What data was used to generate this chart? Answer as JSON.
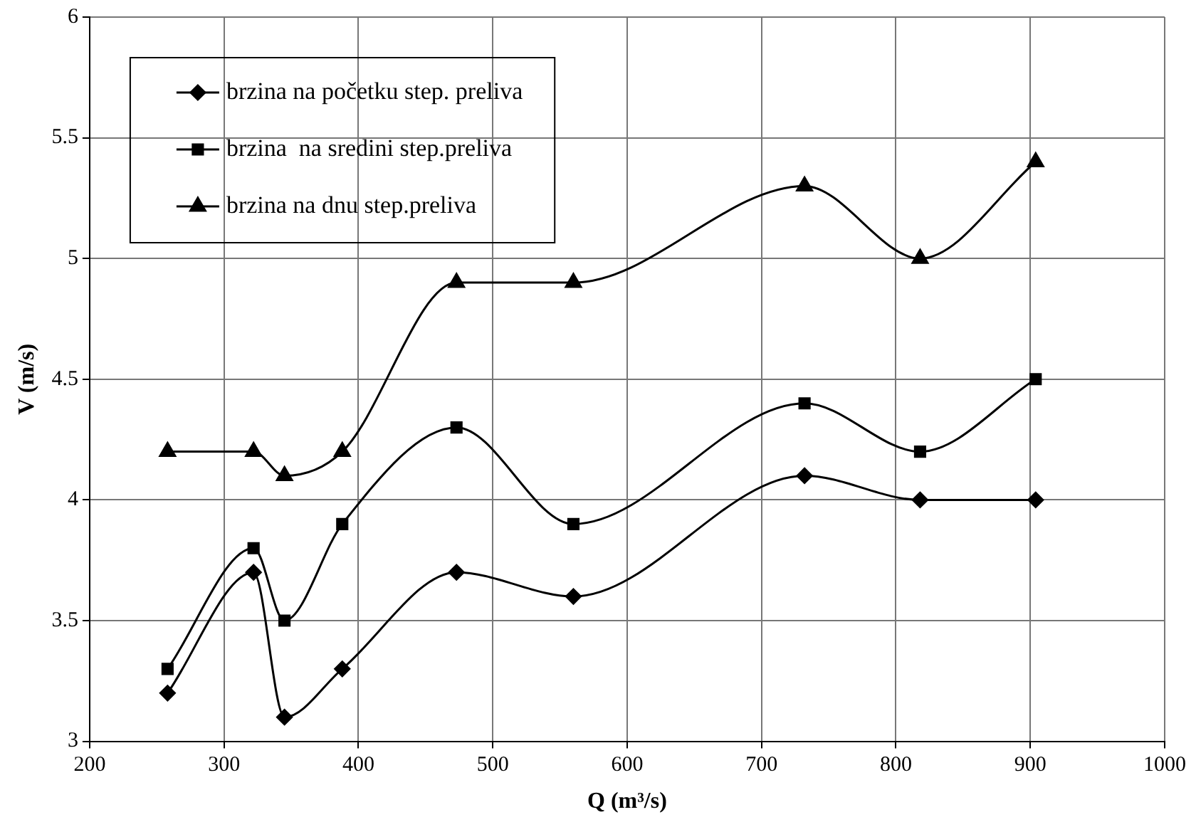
{
  "chart_data": {
    "type": "line",
    "xlabel": "Q (m³/s)",
    "ylabel": "V (m/s)",
    "x": [
      258,
      322,
      345,
      388,
      473,
      560,
      732,
      818,
      904
    ],
    "series": [
      {
        "name": "brzina na početku step. preliva",
        "color": "#000000",
        "marker": "diamond",
        "values": [
          3.2,
          3.7,
          3.1,
          3.3,
          3.7,
          3.6,
          4.1,
          4.0,
          4.0
        ]
      },
      {
        "name": "brzina  na sredini step.preliva",
        "color": "#000000",
        "marker": "square",
        "values": [
          3.3,
          3.8,
          3.5,
          3.9,
          4.3,
          3.9,
          4.4,
          4.2,
          4.5
        ]
      },
      {
        "name": "brzina na dnu step.preliva",
        "color": "#000000",
        "marker": "triangle",
        "values": [
          4.2,
          4.2,
          4.1,
          4.2,
          4.9,
          4.9,
          5.3,
          5.0,
          5.4
        ]
      }
    ],
    "xlim": [
      200,
      1000
    ],
    "xticks": [
      200,
      300,
      400,
      500,
      600,
      700,
      800,
      900,
      1000
    ],
    "ylim": [
      3,
      6
    ],
    "yticks": [
      3,
      3.5,
      4,
      4.5,
      5,
      5.5,
      6
    ],
    "grid": true,
    "legend": "top left",
    "line_style": "solid"
  }
}
